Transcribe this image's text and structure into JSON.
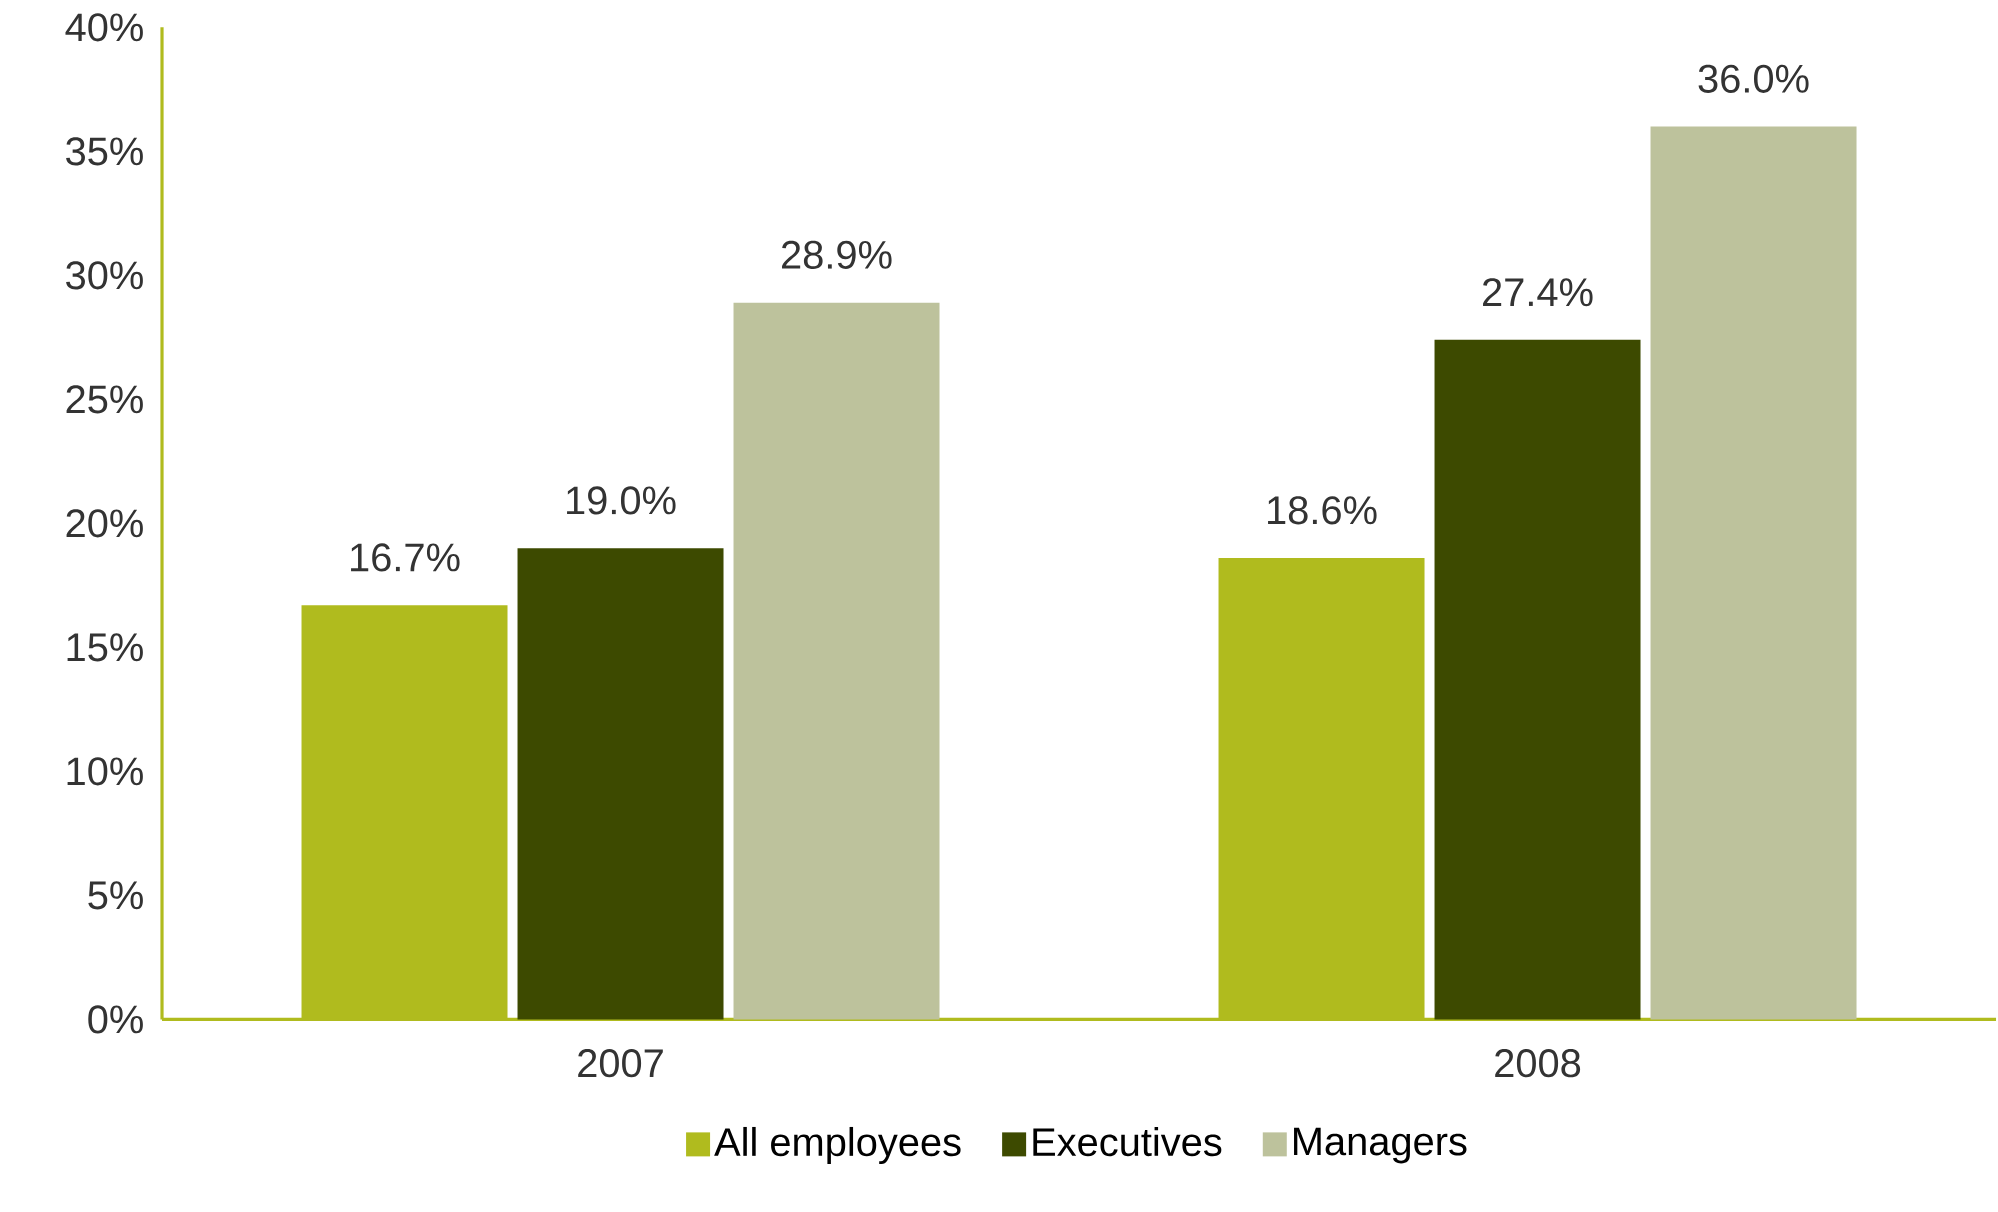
{
  "chart_data": {
    "type": "bar",
    "categories": [
      "2007",
      "2008"
    ],
    "series": [
      {
        "name": "All employees",
        "color": "#b0bb1e",
        "values": [
          16.7,
          18.6
        ],
        "value_labels": [
          "16.7%",
          "18.6%"
        ]
      },
      {
        "name": "Executives",
        "color": "#3d4a00",
        "values": [
          19.0,
          27.4
        ],
        "value_labels": [
          "19.0%",
          "27.4%"
        ]
      },
      {
        "name": "Managers",
        "color": "#bdc29c",
        "values": [
          28.9,
          36.0
        ],
        "value_labels": [
          "28.9%",
          "36.0%"
        ]
      }
    ],
    "ylim": [
      0,
      40
    ],
    "yticks": [
      {
        "value": 0,
        "label": "0%"
      },
      {
        "value": 5,
        "label": "5%"
      },
      {
        "value": 10,
        "label": "10%"
      },
      {
        "value": 15,
        "label": "15%"
      },
      {
        "value": 20,
        "label": "20%"
      },
      {
        "value": 25,
        "label": "25%"
      },
      {
        "value": 30,
        "label": "30%"
      },
      {
        "value": 35,
        "label": "35%"
      },
      {
        "value": 40,
        "label": "40%"
      }
    ],
    "grid": false,
    "legend": "bottom"
  }
}
